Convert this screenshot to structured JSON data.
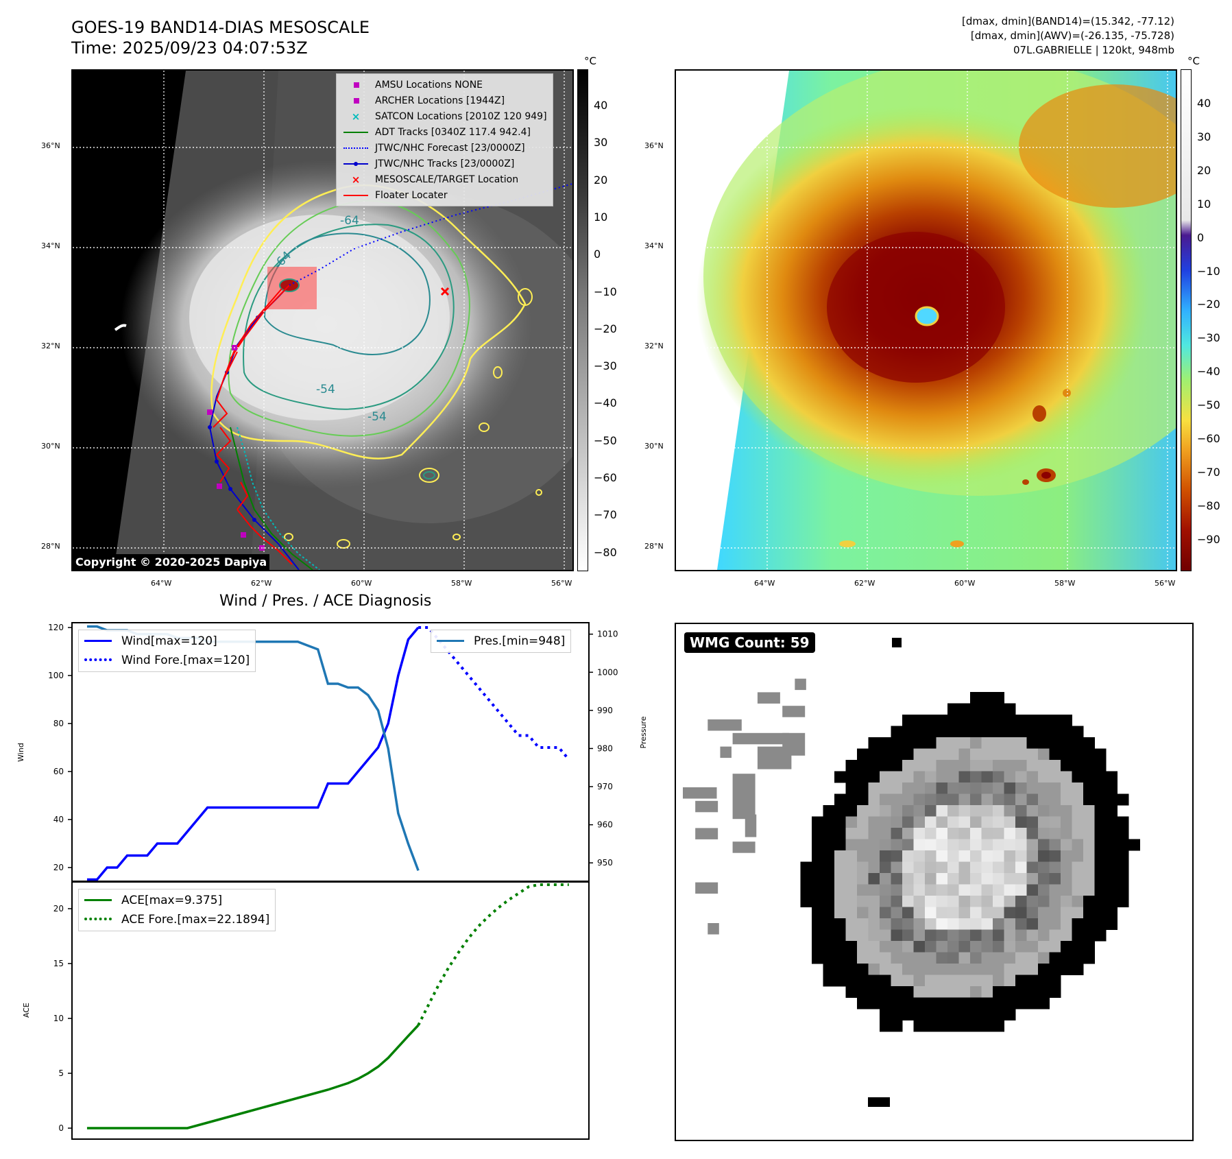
{
  "header": {
    "title": "GOES-19 BAND14-DIAS MESOSCALE",
    "time": "Time: 2025/09/23 04:07:53Z",
    "info_line1": "[dmax, dmin](BAND14)=(15.342, -77.12)",
    "info_line2": "[dmax, dmin](AWV)=(-26.135, -75.728)",
    "info_line3": "07L.GABRIELLE | 120kt, 948mb"
  },
  "map": {
    "lat_labels": [
      "36°N",
      "34°N",
      "32°N",
      "30°N",
      "28°N"
    ],
    "lon_labels": [
      "64°W",
      "62°W",
      "60°W",
      "58°W",
      "56°W"
    ],
    "copyright": "Copyright © 2020-2025 Dapiya",
    "contour_labels": [
      "-64",
      "-64",
      "-54",
      "-54"
    ],
    "legend": [
      {
        "label": "AMSU Locations NONE",
        "color": "#c000c0",
        "marker": "square"
      },
      {
        "label": "ARCHER Locations [1944Z]",
        "color": "#c000c0",
        "marker": "square"
      },
      {
        "label": "SATCON Locations [2010Z 120 949]",
        "color": "#00bbbb",
        "marker": "x"
      },
      {
        "label": "ADT Tracks [0340Z 117.4 942.4]",
        "color": "#008000",
        "marker": "line"
      },
      {
        "label": "JTWC/NHC Forecast [23/0000Z]",
        "color": "#0000ff",
        "marker": "dotted"
      },
      {
        "label": "JTWC/NHC Tracks [23/0000Z]",
        "color": "#0000cc",
        "marker": "line-dot"
      },
      {
        "label": "MESOSCALE/TARGET Location",
        "color": "#ff0000",
        "marker": "x"
      },
      {
        "label": "Floater Locater",
        "color": "#ff0000",
        "marker": "line"
      }
    ]
  },
  "colorbar_left": {
    "unit": "°C",
    "ticks": [
      "40",
      "30",
      "20",
      "10",
      "0",
      "−10",
      "−20",
      "−30",
      "−40",
      "−50",
      "−60",
      "−70",
      "−80"
    ]
  },
  "colorbar_right": {
    "unit": "°C",
    "ticks": [
      "40",
      "30",
      "20",
      "10",
      "0",
      "−10",
      "−20",
      "−30",
      "−40",
      "−50",
      "−60",
      "−70",
      "−80",
      "−90"
    ]
  },
  "wmg": {
    "badge": "WMG Count: 59"
  },
  "chart_data": [
    {
      "type": "line",
      "title": "Wind / Pres. / ACE Diagnosis",
      "ylabel": "Wind",
      "ylabel_right": "Pressure",
      "ylim": [
        14,
        122
      ],
      "ylim_right": [
        945,
        1013
      ],
      "yticks": [
        20,
        40,
        60,
        80,
        100,
        120
      ],
      "yticks_right": [
        950,
        960,
        970,
        980,
        990,
        1000,
        1010
      ],
      "x": [
        0,
        1,
        2,
        3,
        4,
        5,
        6,
        7,
        8,
        9,
        10,
        11,
        12,
        13,
        14,
        15,
        16,
        17,
        18,
        19,
        20,
        21,
        22,
        23,
        24,
        25,
        26,
        27,
        28,
        29,
        30,
        31,
        32,
        33
      ],
      "series": [
        {
          "name": "Wind[max=120]",
          "color": "#0000ff",
          "style": "solid",
          "x": [
            0,
            1,
            2,
            3,
            4,
            5,
            6,
            7,
            8,
            9,
            10,
            11,
            12,
            13,
            14,
            15,
            16,
            17,
            18,
            19,
            20,
            21,
            22,
            23,
            24,
            25,
            26,
            27,
            28,
            29,
            30,
            31,
            32,
            33
          ],
          "values": [
            15,
            15,
            20,
            20,
            25,
            25,
            25,
            30,
            30,
            30,
            35,
            40,
            45,
            45,
            45,
            45,
            45,
            45,
            45,
            45,
            45,
            45,
            45,
            45,
            55,
            55,
            55,
            60,
            65,
            70,
            80,
            100,
            115,
            120
          ]
        },
        {
          "name": "Wind Fore.[max=120]",
          "color": "#0000ff",
          "style": "dotted",
          "x": [
            33,
            34,
            35,
            36,
            37,
            38,
            39,
            40,
            41,
            42,
            43,
            44,
            45,
            46,
            47,
            48
          ],
          "values": [
            120,
            120,
            115,
            110,
            105,
            100,
            95,
            90,
            85,
            80,
            75,
            75,
            70,
            70,
            70,
            65
          ]
        },
        {
          "name": "Pres.[min=948]",
          "color": "#1f77b4",
          "style": "solid",
          "axis": "right",
          "x": [
            0,
            1,
            2,
            3,
            4,
            5,
            6,
            7,
            8,
            9,
            10,
            11,
            12,
            13,
            14,
            15,
            16,
            17,
            18,
            19,
            20,
            21,
            22,
            23,
            24,
            25,
            26,
            27,
            28,
            29,
            30,
            31,
            32,
            33
          ],
          "values": [
            1012,
            1012,
            1011,
            1011,
            1011,
            1010,
            1010,
            1010,
            1010,
            1009,
            1009,
            1009,
            1008,
            1008,
            1008,
            1008,
            1008,
            1008,
            1008,
            1008,
            1008,
            1008,
            1007,
            1006,
            997,
            997,
            996,
            996,
            994,
            990,
            980,
            963,
            955,
            948
          ]
        }
      ]
    },
    {
      "type": "line",
      "ylabel": "ACE",
      "ylim": [
        -1,
        22.5
      ],
      "yticks": [
        0,
        5,
        10,
        15,
        20
      ],
      "series": [
        {
          "name": "ACE[max=9.375]",
          "color": "#008000",
          "style": "solid",
          "x": [
            0,
            4,
            8,
            10,
            12,
            14,
            16,
            18,
            20,
            22,
            24,
            26,
            27,
            28,
            29,
            30,
            31,
            32,
            33
          ],
          "values": [
            0,
            0,
            0,
            0,
            0.5,
            1.0,
            1.5,
            2.0,
            2.5,
            3.0,
            3.5,
            4.1,
            4.5,
            5.0,
            5.6,
            6.4,
            7.4,
            8.4,
            9.375
          ]
        },
        {
          "name": "ACE Fore.[max=22.1894]",
          "color": "#008000",
          "style": "dotted",
          "x": [
            33,
            34,
            35,
            36,
            37,
            38,
            39,
            40,
            41,
            42,
            43,
            44,
            45,
            46,
            47,
            48
          ],
          "values": [
            9.375,
            11.2,
            13.0,
            14.6,
            16.0,
            17.3,
            18.4,
            19.3,
            20.1,
            20.8,
            21.4,
            22.0,
            22.19,
            22.19,
            22.19,
            22.19
          ]
        }
      ]
    }
  ]
}
